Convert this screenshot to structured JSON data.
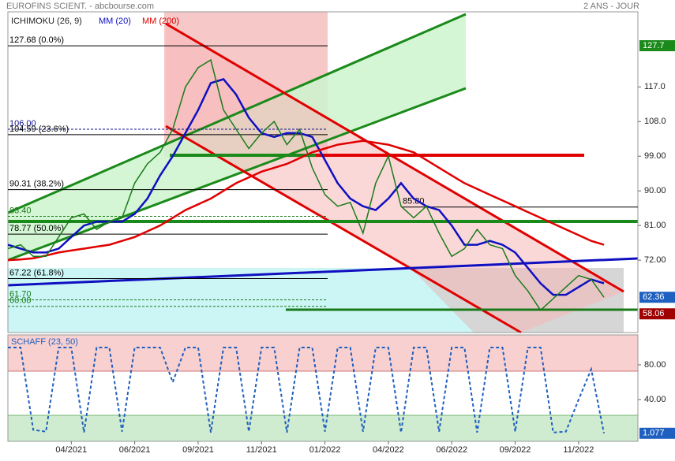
{
  "chart_data": [
    {
      "type": "line",
      "title": "EUROFINS SCIENT. - abcbourse.com",
      "subtitle": "2 ANS - JOUR",
      "indicator": "ICHIMOKU (26, 9)",
      "color": "#1a7a1a",
      "values": [
        75,
        76,
        73,
        73,
        78,
        83,
        84,
        80,
        82,
        83,
        92,
        97,
        100,
        106,
        117,
        122,
        124,
        111,
        106,
        101,
        105,
        108,
        102,
        106,
        96,
        89,
        86,
        87,
        79,
        92,
        99,
        86,
        83,
        86,
        79,
        73,
        75,
        80,
        76,
        75,
        68,
        64,
        59,
        62,
        65,
        68,
        67,
        62.36
      ],
      "series": [
        {
          "name": "MM (20)",
          "color": "#1010c0",
          "values": [
            76,
            75,
            74,
            74,
            75,
            78,
            81,
            82,
            82,
            82,
            84,
            88,
            94,
            99,
            105,
            111,
            118,
            119,
            115,
            109,
            105,
            104,
            105,
            105,
            104,
            98,
            92,
            88,
            86,
            85,
            88,
            92,
            88,
            86,
            85,
            81,
            76,
            76,
            77,
            76,
            74,
            70,
            66,
            63,
            63,
            65,
            67,
            66
          ]
        },
        {
          "name": "MM (200)",
          "color": "#e00000",
          "values": [
            72,
            72.2,
            72.5,
            73.2,
            74,
            74.5,
            75,
            75.5,
            76,
            77,
            78,
            79.5,
            81,
            83,
            85,
            86.5,
            88,
            90,
            92,
            93.5,
            95,
            96,
            97,
            98.5,
            100,
            101,
            102,
            102.5,
            103,
            102.5,
            102,
            101,
            100,
            98,
            96,
            94,
            92,
            90.5,
            89,
            87.5,
            86,
            84.5,
            83,
            81.5,
            80,
            78.5,
            77,
            76
          ]
        }
      ],
      "ylim": [
        53.2,
        136.5
      ],
      "yticks": [
        {
          "value": 117,
          "label": "117.0"
        },
        {
          "value": 108,
          "label": "108.0"
        },
        {
          "value": 99,
          "label": "99.00"
        },
        {
          "value": 90,
          "label": "90.00"
        },
        {
          "value": 81,
          "label": "81.00"
        },
        {
          "value": 72,
          "label": "72.00"
        }
      ],
      "price_markers": [
        127.7,
        62.36,
        58.06
      ],
      "price_marker_colors": [
        "#1a8a1a",
        "#1f5fbf",
        "#a00000"
      ],
      "annotations": [
        {
          "text": "127.68 (0.0%)",
          "value": 127.68,
          "color": "#000000"
        },
        {
          "text": "106.00",
          "value": 106,
          "color": "#10108a"
        },
        {
          "text": "104.59 (23.6%)",
          "value": 104.59,
          "color": "#000000"
        },
        {
          "text": "90.31 (38.2%)",
          "value": 90.31,
          "color": "#000000"
        },
        {
          "text": "83.40",
          "value": 83.4,
          "color": "#1a7a1a"
        },
        {
          "text": "78.77 (50.0%)",
          "value": 78.77,
          "color": "#000000"
        },
        {
          "text": "67.22 (61.8%)",
          "value": 67.22,
          "color": "#000000"
        },
        {
          "text": "61.70",
          "value": 61.7,
          "color": "#1a7a1a"
        },
        {
          "text": "60.00",
          "value": 60,
          "color": "#1a7a1a"
        },
        {
          "text": "85.80",
          "value": 85.8,
          "color": "#000000",
          "at": 31
        }
      ]
    },
    {
      "type": "line",
      "title": "SCHAFF (23, 50)",
      "color": "#1f5fbf",
      "categories": [
        null,
        null,
        null,
        null,
        null,
        "04/2021",
        null,
        null,
        null,
        null,
        "06/2021",
        null,
        null,
        null,
        null,
        "09/2021",
        null,
        null,
        null,
        null,
        "11/2021",
        null,
        null,
        null,
        null,
        "01/2022",
        null,
        null,
        null,
        null,
        "04/2022",
        null,
        null,
        null,
        null,
        "06/2022",
        null,
        null,
        null,
        null,
        "09/2022",
        null,
        null,
        null,
        null,
        "11/2022",
        null,
        null
      ],
      "values": [
        100,
        100,
        5,
        3,
        100,
        100,
        2,
        100,
        100,
        3,
        100,
        100,
        100,
        60,
        100,
        100,
        2,
        100,
        100,
        3,
        100,
        100,
        2,
        100,
        100,
        3,
        100,
        100,
        3,
        100,
        100,
        2,
        100,
        100,
        3,
        100,
        100,
        2,
        100,
        100,
        3,
        100,
        100,
        2,
        3,
        40,
        75,
        1.077
      ],
      "ylim": [
        -8.2,
        114.5
      ],
      "yticks": [
        {
          "value": 80,
          "label": "80.00"
        },
        {
          "value": 40,
          "label": "40.00"
        }
      ],
      "last_marker": 1.077
    }
  ]
}
